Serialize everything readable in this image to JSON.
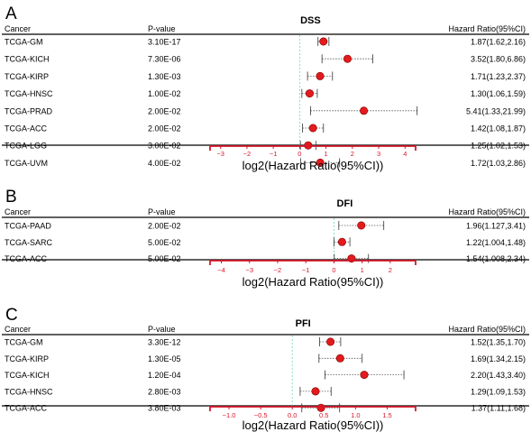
{
  "colors": {
    "axis": "#d6172a",
    "point": "#e41a1c",
    "zero_line": "#6fd6c0",
    "rule": "#000000",
    "whisker": "#555555"
  },
  "chart_data": [
    {
      "type": "forest",
      "panel_letter": "A",
      "title": "DSS",
      "columns": {
        "cancer": "Cancer",
        "pvalue": "P-value",
        "hr": "Hazard Ratio(95%CI)"
      },
      "xlabel": "log2(Hazard Ratio(95%CI))",
      "xlim": [
        -3.4,
        4.4
      ],
      "ticks": [
        -3,
        -2,
        -1,
        0,
        1,
        2,
        3,
        4
      ],
      "tick_labels": [
        "−3",
        "−2",
        "−1",
        "0",
        "1",
        "2",
        "3",
        "4"
      ],
      "rows": [
        {
          "cancer": "TCGA-GM",
          "pvalue": "3.10E-17",
          "hr_text": "1.87(1.62,2.16)",
          "hr": 1.87,
          "lo": 1.62,
          "hi": 2.16
        },
        {
          "cancer": "TCGA-KICH",
          "pvalue": "7.30E-06",
          "hr_text": "3.52(1.80,6.86)",
          "hr": 3.52,
          "lo": 1.8,
          "hi": 6.86
        },
        {
          "cancer": "TCGA-KIRP",
          "pvalue": "1.30E-03",
          "hr_text": "1.71(1.23,2.37)",
          "hr": 1.71,
          "lo": 1.23,
          "hi": 2.37
        },
        {
          "cancer": "TCGA-HNSC",
          "pvalue": "1.00E-02",
          "hr_text": "1.30(1.06,1.59)",
          "hr": 1.3,
          "lo": 1.06,
          "hi": 1.59
        },
        {
          "cancer": "TCGA-PRAD",
          "pvalue": "2.00E-02",
          "hr_text": "5.41(1.33,21.99)",
          "hr": 5.41,
          "lo": 1.33,
          "hi": 21.99
        },
        {
          "cancer": "TCGA-ACC",
          "pvalue": "2.00E-02",
          "hr_text": "1.42(1.08,1.87)",
          "hr": 1.42,
          "lo": 1.08,
          "hi": 1.87
        },
        {
          "cancer": "TCGA-LGG",
          "pvalue": "3.00E-02",
          "hr_text": "1.25(1.02,1.53)",
          "hr": 1.25,
          "lo": 1.02,
          "hi": 1.53
        },
        {
          "cancer": "TCGA-UVM",
          "pvalue": "4.00E-02",
          "hr_text": "1.72(1.03,2.86)",
          "hr": 1.72,
          "lo": 1.03,
          "hi": 2.86
        }
      ]
    },
    {
      "type": "forest",
      "panel_letter": "B",
      "title": "DFI",
      "columns": {
        "cancer": "Cancer",
        "pvalue": "P-value",
        "hr": "Hazard Ratio(95%CI)"
      },
      "xlabel": "log2(Hazard Ratio(95%CI))",
      "xlim": [
        -4.4,
        2.9
      ],
      "ticks": [
        -4,
        -3,
        -2,
        -1,
        0,
        1,
        2
      ],
      "tick_labels": [
        "−4",
        "−3",
        "−2",
        "−1",
        "0",
        "1",
        "2"
      ],
      "rows": [
        {
          "cancer": "TCGA-PAAD",
          "pvalue": "2.00E-02",
          "hr_text": "1.96(1.127,3.41)",
          "hr": 1.96,
          "lo": 1.127,
          "hi": 3.41
        },
        {
          "cancer": "TCGA-SARC",
          "pvalue": "5.00E-02",
          "hr_text": "1.22(1.004,1.48)",
          "hr": 1.22,
          "lo": 1.004,
          "hi": 1.48
        },
        {
          "cancer": "TCGA-ACC",
          "pvalue": "5.00E-02",
          "hr_text": "1.54(1.008,2.34)",
          "hr": 1.54,
          "lo": 1.008,
          "hi": 2.34
        }
      ]
    },
    {
      "type": "forest",
      "panel_letter": "C",
      "title": "PFI",
      "columns": {
        "cancer": "Cancer",
        "pvalue": "P-value",
        "hr": "Hazard Ratio(95%CI)"
      },
      "xlabel": "log2(Hazard Ratio(95%CI))",
      "xlim": [
        -1.3,
        1.95
      ],
      "ticks": [
        -1.0,
        -0.5,
        0.0,
        0.5,
        1.0,
        1.5
      ],
      "tick_labels": [
        "−1.0",
        "−0.5",
        "0.0",
        "0.5",
        "1.0",
        "1.5"
      ],
      "rows": [
        {
          "cancer": "TCGA-GM",
          "pvalue": "3.30E-12",
          "hr_text": "1.52(1.35,1.70)",
          "hr": 1.52,
          "lo": 1.35,
          "hi": 1.7
        },
        {
          "cancer": "TCGA-KIRP",
          "pvalue": "1.30E-05",
          "hr_text": "1.69(1.34,2.15)",
          "hr": 1.69,
          "lo": 1.34,
          "hi": 2.15
        },
        {
          "cancer": "TCGA-KICH",
          "pvalue": "1.20E-04",
          "hr_text": "2.20(1.43,3.40)",
          "hr": 2.2,
          "lo": 1.43,
          "hi": 3.4
        },
        {
          "cancer": "TCGA-HNSC",
          "pvalue": "2.80E-03",
          "hr_text": "1.29(1.09,1.53)",
          "hr": 1.29,
          "lo": 1.09,
          "hi": 1.53
        },
        {
          "cancer": "TCGA-ACC",
          "pvalue": "3.80E-03",
          "hr_text": "1.37(1.11,1.68)",
          "hr": 1.37,
          "lo": 1.11,
          "hi": 1.68
        }
      ]
    }
  ]
}
